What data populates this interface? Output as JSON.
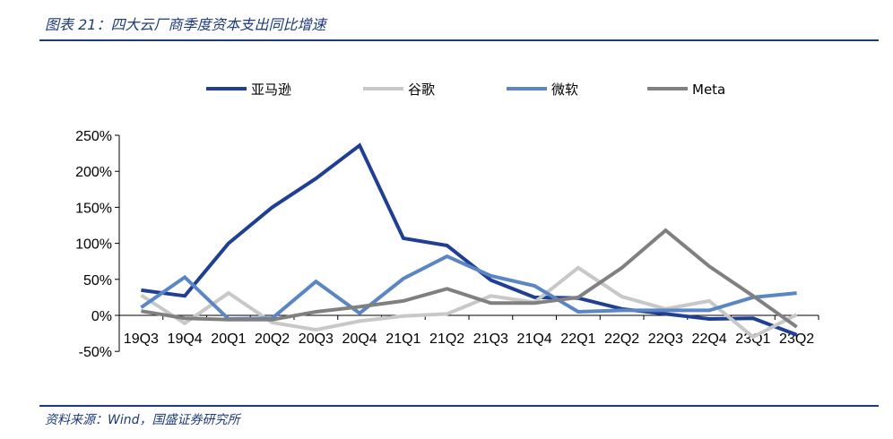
{
  "title": "图表 21：四大云厂商季度资本支出同比增速",
  "source": "资料来源：Wind，国盛证券研究所",
  "chart_data": {
    "type": "line",
    "title": "图表 21：四大云厂商季度资本支出同比增速",
    "xlabel": "",
    "ylabel": "",
    "ylim": [
      -50,
      250
    ],
    "yticks": [
      -50,
      0,
      50,
      100,
      150,
      200,
      250
    ],
    "ytick_labels": [
      "-50%",
      "0%",
      "50%",
      "100%",
      "150%",
      "200%",
      "250%"
    ],
    "legend_position": "top",
    "categories": [
      "19Q3",
      "19Q4",
      "20Q1",
      "20Q2",
      "20Q3",
      "20Q4",
      "21Q1",
      "21Q2",
      "21Q3",
      "21Q4",
      "22Q1",
      "22Q2",
      "22Q3",
      "22Q4",
      "23Q1",
      "23Q2"
    ],
    "series": [
      {
        "name": "亚马逊",
        "color": "#1f3f94",
        "values": [
          35,
          27,
          100,
          150,
          190,
          236,
          107,
          97,
          49,
          25,
          24,
          9,
          2,
          -5,
          -4,
          -27
        ]
      },
      {
        "name": "谷歌",
        "color": "#c8c8c8",
        "values": [
          28,
          -11,
          31,
          -10,
          -20,
          -8,
          -1,
          2,
          27,
          18,
          66,
          26,
          9,
          20,
          -30,
          1
        ]
      },
      {
        "name": "微软",
        "color": "#5b86c5",
        "values": [
          11,
          53,
          -5,
          -4,
          47,
          3,
          51,
          82,
          55,
          41,
          5,
          7,
          7,
          7,
          25,
          31
        ]
      },
      {
        "name": "Meta",
        "color": "#808080",
        "values": [
          6,
          -4,
          -6,
          -6,
          5,
          12,
          20,
          37,
          17,
          17,
          25,
          66,
          118,
          68,
          27,
          -16
        ]
      }
    ]
  }
}
